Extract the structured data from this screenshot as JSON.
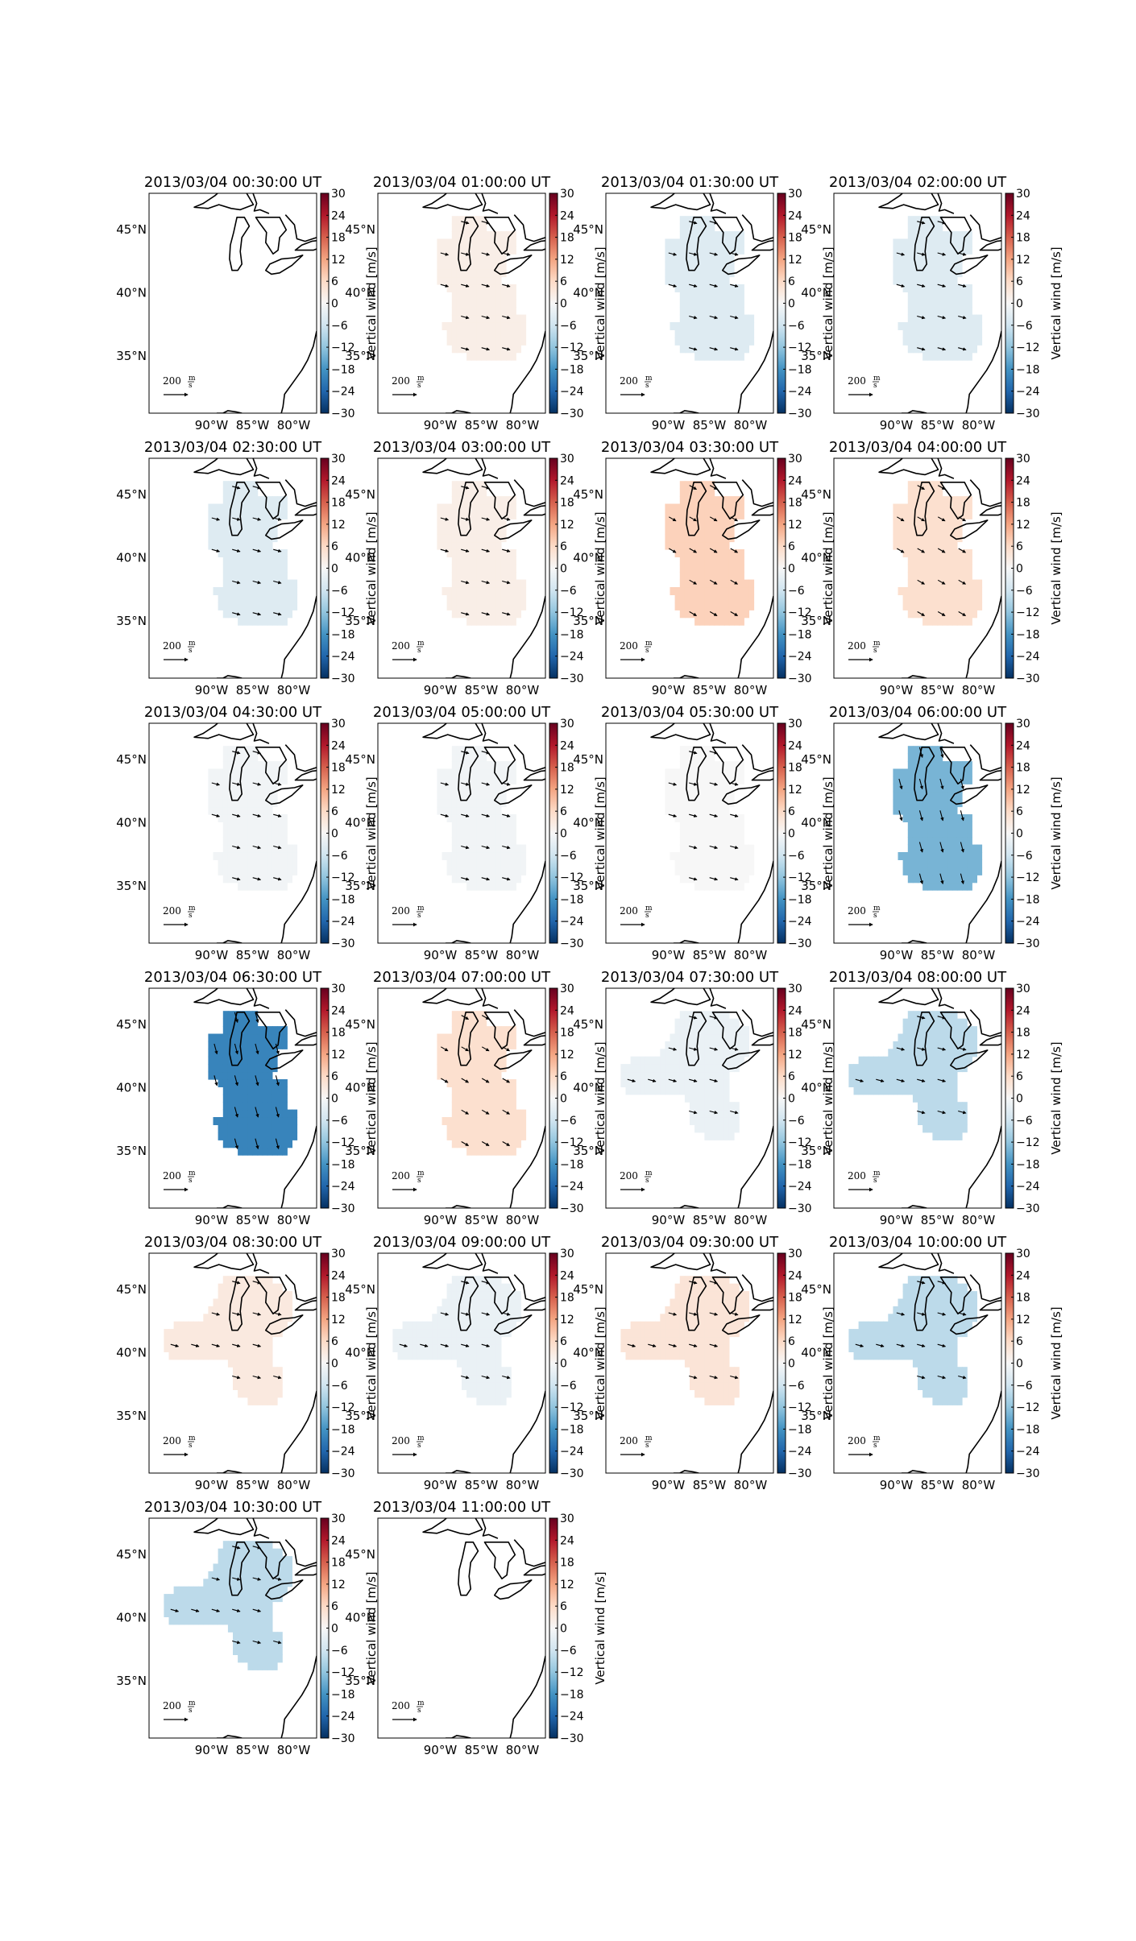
{
  "figure": {
    "colorbar_label": "Vertical wind [m/s]",
    "colorbar_ticks": [
      "30",
      "24",
      "18",
      "12",
      "6",
      "0",
      "−6",
      "−12",
      "−18",
      "−24",
      "−30"
    ],
    "lat_labels": [
      "45°N",
      "40°N",
      "35°N"
    ],
    "lon_labels": [
      "90°W",
      "85°W",
      "80°W"
    ],
    "scale_label": "200",
    "scale_unit_num": "m",
    "scale_unit_den": "s",
    "colormap": {
      "name": "RdBu_r",
      "vmin": -30,
      "vmax": 30,
      "stops": [
        "#053061",
        "#2166ac",
        "#4393c3",
        "#92c5de",
        "#d1e5f0",
        "#f7f7f7",
        "#fddbc7",
        "#f4a582",
        "#d6604d",
        "#b2182b",
        "#67001f"
      ]
    },
    "panels": [
      {
        "title": "2013/03/04 00:30:00 UT",
        "region": "none",
        "value": 0,
        "colorbar_labeled": false
      },
      {
        "title": "2013/03/04 01:00:00 UT",
        "region": "shapeA",
        "value": 2,
        "colorbar_labeled": false
      },
      {
        "title": "2013/03/04 01:30:00 UT",
        "region": "shapeA",
        "value": -4,
        "colorbar_labeled": false
      },
      {
        "title": "2013/03/04 02:00:00 UT",
        "region": "shapeA",
        "value": -4,
        "colorbar_labeled": true
      },
      {
        "title": "2013/03/04 02:30:00 UT",
        "region": "shapeA",
        "value": -4,
        "colorbar_labeled": false
      },
      {
        "title": "2013/03/04 03:00:00 UT",
        "region": "shapeA",
        "value": 2,
        "colorbar_labeled": false
      },
      {
        "title": "2013/03/04 03:30:00 UT",
        "region": "shapeA",
        "value": 7,
        "colorbar_labeled": false
      },
      {
        "title": "2013/03/04 04:00:00 UT",
        "region": "shapeA",
        "value": 5,
        "colorbar_labeled": true
      },
      {
        "title": "2013/03/04 04:30:00 UT",
        "region": "shapeA",
        "value": -1,
        "colorbar_labeled": false
      },
      {
        "title": "2013/03/04 05:00:00 UT",
        "region": "shapeA",
        "value": -1,
        "colorbar_labeled": false
      },
      {
        "title": "2013/03/04 05:30:00 UT",
        "region": "shapeA",
        "value": 0,
        "colorbar_labeled": false
      },
      {
        "title": "2013/03/04 06:00:00 UT",
        "region": "shapeA",
        "value": -14,
        "colorbar_labeled": true
      },
      {
        "title": "2013/03/04 06:30:00 UT",
        "region": "shapeA",
        "value": -20,
        "colorbar_labeled": false
      },
      {
        "title": "2013/03/04 07:00:00 UT",
        "region": "shapeA",
        "value": 5,
        "colorbar_labeled": false
      },
      {
        "title": "2013/03/04 07:30:00 UT",
        "region": "shapeB",
        "value": -2,
        "colorbar_labeled": false
      },
      {
        "title": "2013/03/04 08:00:00 UT",
        "region": "shapeB",
        "value": -8,
        "colorbar_labeled": true
      },
      {
        "title": "2013/03/04 08:30:00 UT",
        "region": "shapeB",
        "value": 3,
        "colorbar_labeled": false
      },
      {
        "title": "2013/03/04 09:00:00 UT",
        "region": "shapeB",
        "value": -2,
        "colorbar_labeled": false
      },
      {
        "title": "2013/03/04 09:30:00 UT",
        "region": "shapeB",
        "value": 4,
        "colorbar_labeled": false
      },
      {
        "title": "2013/03/04 10:00:00 UT",
        "region": "shapeB",
        "value": -8,
        "colorbar_labeled": true
      },
      {
        "title": "2013/03/04 10:30:00 UT",
        "region": "shapeB",
        "value": -8,
        "colorbar_labeled": false
      },
      {
        "title": "2013/03/04 11:00:00 UT",
        "region": "none",
        "value": 0,
        "colorbar_labeled": true
      }
    ]
  }
}
